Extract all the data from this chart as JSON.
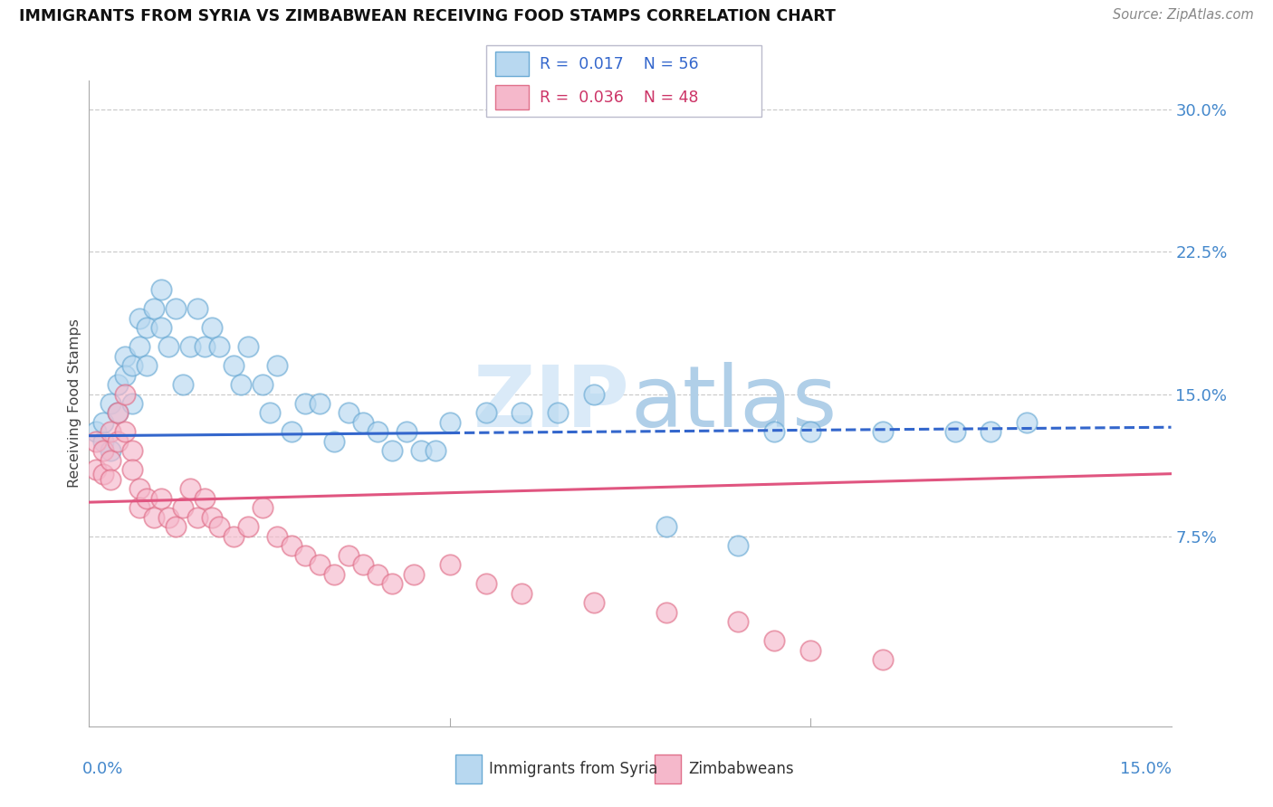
{
  "title": "IMMIGRANTS FROM SYRIA VS ZIMBABWEAN RECEIVING FOOD STAMPS CORRELATION CHART",
  "source": "Source: ZipAtlas.com",
  "ylabel": "Receiving Food Stamps",
  "ytick_vals": [
    0.075,
    0.15,
    0.225,
    0.3
  ],
  "ytick_labels": [
    "7.5%",
    "15.0%",
    "22.5%",
    "30.0%"
  ],
  "xlim": [
    0.0,
    0.15
  ],
  "ylim": [
    -0.025,
    0.315
  ],
  "series1_face": "#b8d8f0",
  "series1_edge": "#6aaad4",
  "series2_face": "#f5b8cb",
  "series2_edge": "#e0708a",
  "line1_color": "#3366cc",
  "line2_color": "#e05580",
  "line1_intercept": 0.128,
  "line1_slope": 0.03,
  "line1_solid_end": 0.05,
  "line2_intercept": 0.093,
  "line2_slope": 0.1,
  "legend1_r": "0.017",
  "legend1_n": "56",
  "legend2_r": "0.036",
  "legend2_n": "48",
  "legend1_label": "Immigrants from Syria",
  "legend2_label": "Zimbabweans",
  "syria_x": [
    0.001,
    0.002,
    0.002,
    0.003,
    0.003,
    0.004,
    0.004,
    0.005,
    0.005,
    0.006,
    0.006,
    0.007,
    0.007,
    0.008,
    0.008,
    0.009,
    0.01,
    0.01,
    0.011,
    0.012,
    0.013,
    0.014,
    0.015,
    0.016,
    0.017,
    0.018,
    0.02,
    0.021,
    0.022,
    0.024,
    0.025,
    0.026,
    0.028,
    0.03,
    0.032,
    0.034,
    0.036,
    0.038,
    0.04,
    0.042,
    0.044,
    0.046,
    0.048,
    0.05,
    0.055,
    0.06,
    0.065,
    0.07,
    0.08,
    0.09,
    0.095,
    0.1,
    0.11,
    0.12,
    0.125,
    0.13
  ],
  "syria_y": [
    0.13,
    0.125,
    0.135,
    0.145,
    0.12,
    0.155,
    0.14,
    0.17,
    0.16,
    0.165,
    0.145,
    0.19,
    0.175,
    0.185,
    0.165,
    0.195,
    0.205,
    0.185,
    0.175,
    0.195,
    0.155,
    0.175,
    0.195,
    0.175,
    0.185,
    0.175,
    0.165,
    0.155,
    0.175,
    0.155,
    0.14,
    0.165,
    0.13,
    0.145,
    0.145,
    0.125,
    0.14,
    0.135,
    0.13,
    0.12,
    0.13,
    0.12,
    0.12,
    0.135,
    0.14,
    0.14,
    0.14,
    0.15,
    0.08,
    0.07,
    0.13,
    0.13,
    0.13,
    0.13,
    0.13,
    0.135
  ],
  "zimbabwe_x": [
    0.001,
    0.001,
    0.002,
    0.002,
    0.003,
    0.003,
    0.003,
    0.004,
    0.004,
    0.005,
    0.005,
    0.006,
    0.006,
    0.007,
    0.007,
    0.008,
    0.009,
    0.01,
    0.011,
    0.012,
    0.013,
    0.014,
    0.015,
    0.016,
    0.017,
    0.018,
    0.02,
    0.022,
    0.024,
    0.026,
    0.028,
    0.03,
    0.032,
    0.034,
    0.036,
    0.038,
    0.04,
    0.042,
    0.045,
    0.05,
    0.055,
    0.06,
    0.07,
    0.08,
    0.09,
    0.095,
    0.1,
    0.11
  ],
  "zimbabwe_y": [
    0.125,
    0.11,
    0.12,
    0.108,
    0.13,
    0.115,
    0.105,
    0.14,
    0.125,
    0.15,
    0.13,
    0.12,
    0.11,
    0.1,
    0.09,
    0.095,
    0.085,
    0.095,
    0.085,
    0.08,
    0.09,
    0.1,
    0.085,
    0.095,
    0.085,
    0.08,
    0.075,
    0.08,
    0.09,
    0.075,
    0.07,
    0.065,
    0.06,
    0.055,
    0.065,
    0.06,
    0.055,
    0.05,
    0.055,
    0.06,
    0.05,
    0.045,
    0.04,
    0.035,
    0.03,
    0.02,
    0.015,
    0.01
  ]
}
